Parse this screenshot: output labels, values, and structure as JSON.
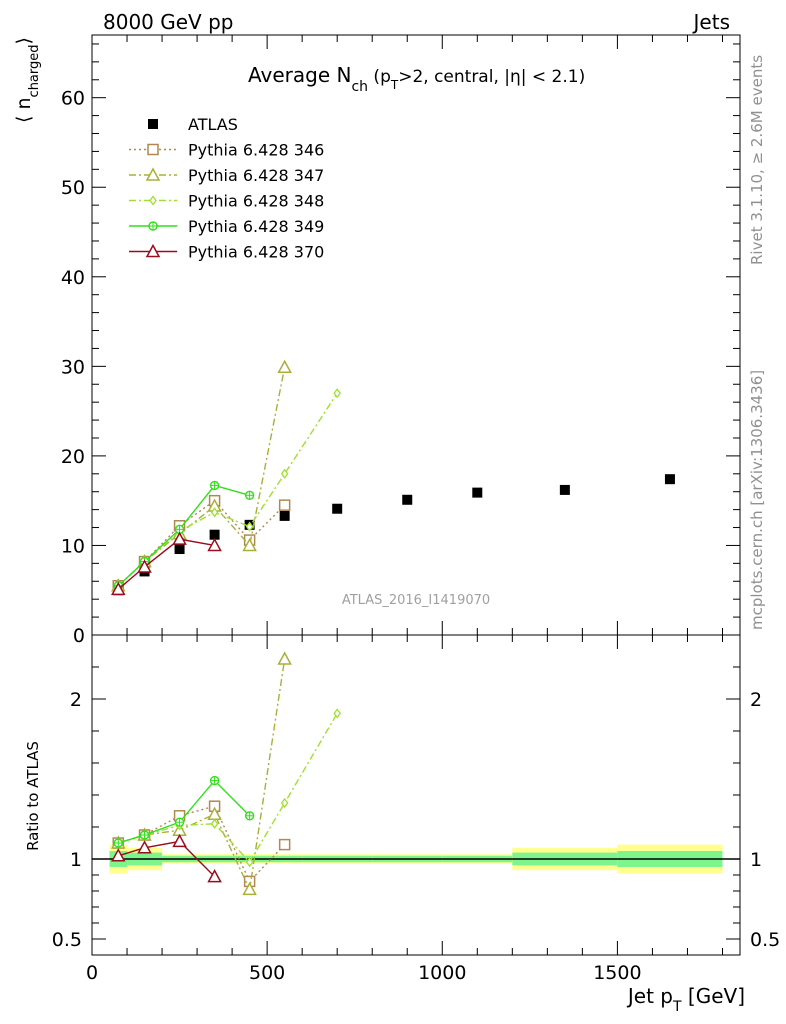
{
  "header": {
    "left": "8000 GeV pp",
    "right": "Jets"
  },
  "side_labels": {
    "rivet": "Rivet 3.1.10, ≥ 2.6M events",
    "mcplots": "mcplots.cern.ch [arXiv:1306.3436]"
  },
  "analysis_tag": "ATLAS_2016_I1419070",
  "colors": {
    "atlas": "#000000",
    "p346": "#b08850",
    "p347": "#a8b038",
    "p348": "#a0e030",
    "p349": "#30e018",
    "p370": "#980c1c",
    "band_inner": "#7ef58c",
    "band_outer": "#ffff90"
  },
  "chart_data": [
    {
      "type": "scatter",
      "panel": "main",
      "title": "Average N_ch (p_T>2, central, |η| < 2.1)",
      "title_parts": {
        "main": "Average N",
        "sub": "ch",
        "rest1": " (p",
        "sub2": "T",
        "rest2": ">2, central, |η| < 2.1)"
      },
      "ylabel": "⟨ n_charged ⟩",
      "ylabel_parts": {
        "open": "⟨ n",
        "sub": "charged",
        "close": "⟩"
      },
      "xlim": [
        0,
        1850
      ],
      "ylim": [
        0,
        67
      ],
      "yticks": [
        0,
        10,
        20,
        30,
        40,
        50,
        60
      ],
      "legend_position": "top-left",
      "series": [
        {
          "name": "ATLAS",
          "key": "atlas",
          "marker": "square-filled",
          "line": "none",
          "x": [
            75,
            150,
            250,
            350,
            450,
            550,
            700,
            900,
            1100,
            1350,
            1650
          ],
          "y": [
            5.0,
            7.1,
            9.6,
            11.2,
            12.3,
            13.3,
            14.1,
            15.1,
            15.9,
            16.2,
            17.4
          ]
        },
        {
          "name": "Pythia 6.428 346",
          "key": "p346",
          "marker": "square-open",
          "line": "dotted",
          "x": [
            75,
            150,
            250,
            350,
            450,
            550
          ],
          "y": [
            5.5,
            8.2,
            12.2,
            15.0,
            10.6,
            14.5
          ]
        },
        {
          "name": "Pythia 6.428 347",
          "key": "p347",
          "marker": "triangle-open",
          "line": "dashdot",
          "x": [
            75,
            150,
            250,
            350,
            450,
            550
          ],
          "y": [
            5.5,
            8.2,
            11.3,
            14.4,
            10.0,
            29.9
          ]
        },
        {
          "name": "Pythia 6.428 348",
          "key": "p348",
          "marker": "diamond-open",
          "line": "dashdot",
          "x": [
            75,
            150,
            250,
            350,
            450,
            550,
            700
          ],
          "y": [
            5.5,
            8.2,
            11.6,
            13.7,
            12.1,
            18.0,
            27.0
          ]
        },
        {
          "name": "Pythia 6.428 349",
          "key": "p349",
          "marker": "circle-cross",
          "line": "solid",
          "x": [
            75,
            150,
            250,
            350,
            450
          ],
          "y": [
            5.5,
            8.2,
            11.8,
            16.7,
            15.6
          ]
        },
        {
          "name": "Pythia 6.428 370",
          "key": "p370",
          "marker": "triangle-open",
          "line": "solid",
          "x": [
            75,
            150,
            250,
            350
          ],
          "y": [
            5.1,
            7.6,
            10.7,
            10.0
          ]
        }
      ]
    },
    {
      "type": "scatter",
      "panel": "ratio",
      "ylabel": "Ratio to ATLAS",
      "xlabel": "Jet p_T [GeV]",
      "xlabel_parts": {
        "main": "Jet p",
        "sub": "T",
        "rest": " [GeV]"
      },
      "xlim": [
        0,
        1850
      ],
      "xticks": [
        0,
        500,
        1000,
        1500
      ],
      "ylim": [
        0.4,
        2.4
      ],
      "yticks": [
        0.5,
        1,
        2
      ],
      "ytick_labels": [
        "0.5",
        "1",
        "2"
      ],
      "reference": 1,
      "uncertainty_band": {
        "x_edges": [
          50,
          100,
          200,
          300,
          400,
          500,
          600,
          800,
          1000,
          1200,
          1500,
          1800
        ],
        "inner": [
          0.05,
          0.04,
          0.02,
          0.02,
          0.02,
          0.02,
          0.02,
          0.02,
          0.02,
          0.04,
          0.05
        ],
        "outer": [
          0.09,
          0.07,
          0.03,
          0.03,
          0.03,
          0.03,
          0.03,
          0.03,
          0.03,
          0.07,
          0.09
        ]
      },
      "series": [
        {
          "name": "Pythia 6.428 346",
          "key": "p346",
          "x": [
            75,
            150,
            250,
            350,
            450,
            550
          ],
          "y": [
            1.1,
            1.15,
            1.27,
            1.33,
            0.86,
            1.09
          ]
        },
        {
          "name": "Pythia 6.428 347",
          "key": "p347",
          "x": [
            75,
            150,
            250,
            350,
            450,
            550
          ],
          "y": [
            1.1,
            1.15,
            1.18,
            1.28,
            0.81,
            2.25
          ]
        },
        {
          "name": "Pythia 6.428 348",
          "key": "p348",
          "x": [
            75,
            150,
            250,
            350,
            450,
            550,
            700
          ],
          "y": [
            1.1,
            1.15,
            1.21,
            1.22,
            0.98,
            1.35,
            1.91
          ]
        },
        {
          "name": "Pythia 6.428 349",
          "key": "p349",
          "x": [
            75,
            150,
            250,
            350,
            450
          ],
          "y": [
            1.1,
            1.15,
            1.23,
            1.49,
            1.27
          ]
        },
        {
          "name": "Pythia 6.428 370",
          "key": "p370",
          "x": [
            75,
            150,
            250,
            350
          ],
          "y": [
            1.02,
            1.07,
            1.11,
            0.89
          ]
        }
      ]
    }
  ]
}
